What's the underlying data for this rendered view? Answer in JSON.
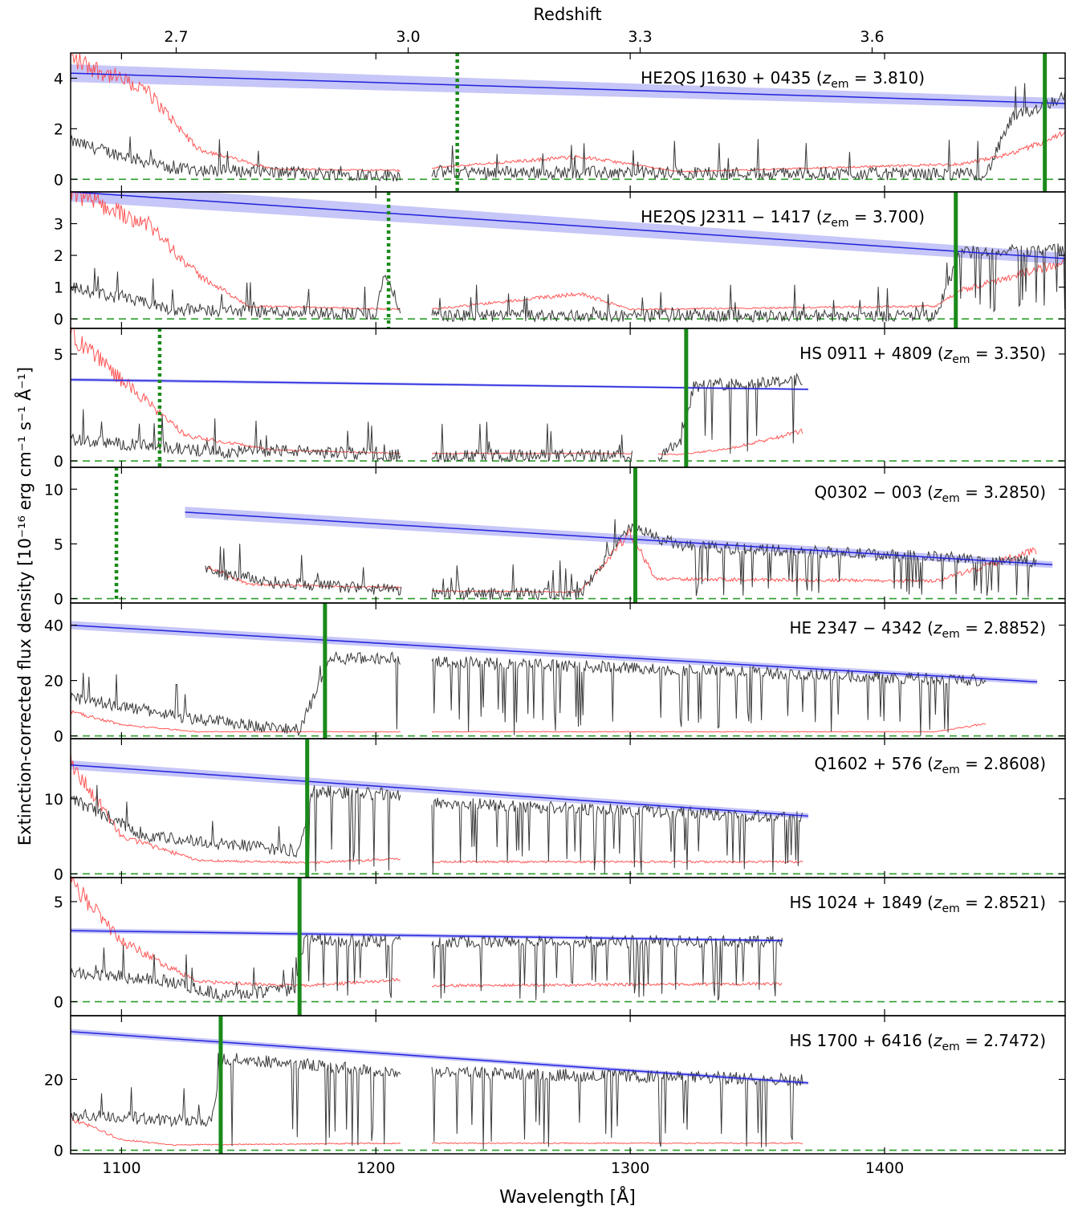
{
  "chart_data": {
    "type": "line",
    "xlabel": "Wavelength [Å]",
    "ylabel": "Extinction-corrected flux density [10⁻¹⁶ erg cm⁻¹ s⁻¹ Å⁻¹]",
    "top_xlabel": "Redshift",
    "xlim": [
      1080,
      1471
    ],
    "x_ticks": [
      1100,
      1200,
      1300,
      1400
    ],
    "x_tick_labels": [
      "1100",
      "1200",
      "1300",
      "1400"
    ],
    "top_ticks": [
      {
        "label": "2.7",
        "wavelength": 1121.5
      },
      {
        "label": "3.0",
        "wavelength": 1212.7
      },
      {
        "label": "3.3",
        "wavelength": 1303.9
      },
      {
        "label": "3.6",
        "wavelength": 1395.1
      }
    ],
    "series_colors": {
      "flux": "#3a3a3a",
      "error": "#ff4444",
      "continuum": "#2222dd",
      "continuum_band": "#b3b3f5",
      "marker": "#1a8a1a",
      "zero": "#2e9e2e"
    },
    "panels": [
      {
        "name": "HE2QS J1630 + 0435",
        "z_em": "3.810",
        "ylim": [
          -0.5,
          5.0
        ],
        "yticks": [
          0,
          2,
          4
        ],
        "lya_obs": 1463,
        "dotted_marker": 1232,
        "solid_marker": 1463,
        "continuum": {
          "x": [
            1080,
            1471
          ],
          "y": [
            4.2,
            3.0
          ],
          "band": 0.35
        },
        "flux_mean": [
          [
            1080,
            1.5
          ],
          [
            1120,
            0.4
          ],
          [
            1210,
            0.15
          ],
          [
            1222,
            0.3
          ],
          [
            1440,
            0.2
          ],
          [
            1450,
            2.4
          ],
          [
            1471,
            3.3
          ]
        ],
        "err_mean": [
          [
            1080,
            4.8
          ],
          [
            1110,
            3.5
          ],
          [
            1130,
            1.2
          ],
          [
            1160,
            0.4
          ],
          [
            1210,
            0.35
          ],
          [
            1222,
            0.45
          ],
          [
            1280,
            0.9
          ],
          [
            1320,
            0.3
          ],
          [
            1430,
            0.6
          ],
          [
            1450,
            1.0
          ],
          [
            1471,
            1.8
          ]
        ],
        "gaps": [
          [
            1210,
            1222
          ]
        ],
        "end": 1471
      },
      {
        "name": "HE2QS J2311 − 1417",
        "z_em": "3.700",
        "ylim": [
          -0.3,
          4.0
        ],
        "yticks": [
          0,
          1,
          2,
          3
        ],
        "lya_obs": 1428,
        "dotted_marker": 1205,
        "solid_marker": 1428,
        "continuum": {
          "x": [
            1080,
            1471
          ],
          "y": [
            4.0,
            1.9
          ],
          "band": 0.3
        },
        "flux_mean": [
          [
            1080,
            1.0
          ],
          [
            1120,
            0.3
          ],
          [
            1200,
            0.15
          ],
          [
            1203,
            1.4
          ],
          [
            1210,
            0.3
          ],
          [
            1222,
            0.1
          ],
          [
            1420,
            0.1
          ],
          [
            1430,
            2.1
          ],
          [
            1471,
            2.2
          ]
        ],
        "err_mean": [
          [
            1080,
            4.0
          ],
          [
            1110,
            3.0
          ],
          [
            1130,
            1.4
          ],
          [
            1150,
            0.4
          ],
          [
            1210,
            0.3
          ],
          [
            1222,
            0.3
          ],
          [
            1280,
            0.8
          ],
          [
            1300,
            0.3
          ],
          [
            1420,
            0.4
          ],
          [
            1430,
            0.9
          ],
          [
            1471,
            1.8
          ]
        ],
        "gaps": [
          [
            1210,
            1222
          ]
        ],
        "end": 1471
      },
      {
        "name": "HS 0911 + 4809",
        "z_em": "3.350",
        "ylim": [
          -0.3,
          6.2
        ],
        "yticks": [
          0,
          5
        ],
        "lya_obs": 1322,
        "dotted_marker": 1115,
        "solid_marker": 1322,
        "continuum": {
          "x": [
            1080,
            1370
          ],
          "y": [
            3.8,
            3.35
          ],
          "band": 0.08
        },
        "flux_mean": [
          [
            1080,
            1.0
          ],
          [
            1140,
            0.4
          ],
          [
            1160,
            0.5
          ],
          [
            1210,
            0.25
          ],
          [
            1222,
            0.25
          ],
          [
            1300,
            0.25
          ],
          [
            1310,
            0.1
          ],
          [
            1320,
            1.0
          ],
          [
            1325,
            3.5
          ],
          [
            1368,
            3.8
          ]
        ],
        "err_mean": [
          [
            1080,
            6.0
          ],
          [
            1100,
            3.8
          ],
          [
            1125,
            1.2
          ],
          [
            1160,
            0.5
          ],
          [
            1210,
            0.35
          ],
          [
            1222,
            0.35
          ],
          [
            1300,
            0.35
          ],
          [
            1320,
            0.3
          ],
          [
            1340,
            0.6
          ],
          [
            1368,
            1.4
          ]
        ],
        "gaps": [
          [
            1210,
            1222
          ],
          [
            1301,
            1311
          ]
        ],
        "end": 1368
      },
      {
        "name": "Q0302 − 003",
        "z_em": "3.2850",
        "ylim": [
          -0.4,
          12.0
        ],
        "yticks": [
          0,
          5,
          10
        ],
        "lya_obs": 1302,
        "dotted_marker": 1098,
        "solid_marker": 1302,
        "continuum": {
          "x": [
            1125,
            1466
          ],
          "y": [
            7.9,
            3.1
          ],
          "band": 0.5
        },
        "flux_mean": [
          [
            1133,
            2.5
          ],
          [
            1160,
            1.5
          ],
          [
            1210,
            0.7
          ],
          [
            1222,
            0.5
          ],
          [
            1280,
            0.4
          ],
          [
            1300,
            6.5
          ],
          [
            1320,
            4.8
          ],
          [
            1460,
            3.4
          ]
        ],
        "err_mean": [
          [
            1133,
            3.0
          ],
          [
            1150,
            1.3
          ],
          [
            1210,
            1.0
          ],
          [
            1222,
            0.7
          ],
          [
            1280,
            0.6
          ],
          [
            1300,
            6.0
          ],
          [
            1310,
            1.8
          ],
          [
            1420,
            1.6
          ],
          [
            1440,
            3.0
          ],
          [
            1460,
            4.5
          ]
        ],
        "gaps": [
          [
            1210,
            1222
          ]
        ],
        "start": 1133,
        "end": 1460
      },
      {
        "name": "HE 2347 − 4342",
        "z_em": "2.8852",
        "ylim": [
          -1.0,
          48.0
        ],
        "yticks": [
          0,
          20,
          40
        ],
        "lya_obs": 1180,
        "dotted_marker": null,
        "solid_marker": 1180,
        "continuum": {
          "x": [
            1080,
            1460
          ],
          "y": [
            40.0,
            19.5
          ],
          "band": 1.5
        },
        "flux_mean": [
          [
            1080,
            14.0
          ],
          [
            1130,
            6.0
          ],
          [
            1170,
            2.0
          ],
          [
            1182,
            28.0
          ],
          [
            1210,
            28.0
          ],
          [
            1222,
            27.0
          ],
          [
            1440,
            20.0
          ]
        ],
        "err_mean": [
          [
            1080,
            9.0
          ],
          [
            1100,
            4.0
          ],
          [
            1130,
            1.5
          ],
          [
            1210,
            1.5
          ],
          [
            1222,
            1.5
          ],
          [
            1420,
            1.5
          ],
          [
            1440,
            4.5
          ]
        ],
        "gaps": [
          [
            1210,
            1222
          ]
        ],
        "end": 1440
      },
      {
        "name": "Q1602 + 576",
        "z_em": "2.8608",
        "ylim": [
          -0.5,
          18.0
        ],
        "yticks": [
          0,
          10
        ],
        "lya_obs": 1173,
        "dotted_marker": null,
        "solid_marker": 1173,
        "continuum": {
          "x": [
            1080,
            1370
          ],
          "y": [
            14.5,
            7.7
          ],
          "band": 0.6
        },
        "flux_mean": [
          [
            1080,
            10.0
          ],
          [
            1110,
            5.0
          ],
          [
            1170,
            3.0
          ],
          [
            1175,
            11.0
          ],
          [
            1210,
            10.5
          ],
          [
            1222,
            9.5
          ],
          [
            1368,
            7.5
          ]
        ],
        "err_mean": [
          [
            1080,
            15.0
          ],
          [
            1100,
            5.0
          ],
          [
            1130,
            1.8
          ],
          [
            1170,
            1.5
          ],
          [
            1175,
            1.5
          ],
          [
            1210,
            2.0
          ],
          [
            1222,
            1.6
          ],
          [
            1368,
            1.6
          ]
        ],
        "gaps": [
          [
            1210,
            1222
          ]
        ],
        "end": 1368
      },
      {
        "name": "HS 1024 + 1849",
        "z_em": "2.8521",
        "ylim": [
          -0.7,
          6.2
        ],
        "yticks": [
          0,
          5
        ],
        "lya_obs": 1170,
        "dotted_marker": null,
        "solid_marker": 1170,
        "continuum": {
          "x": [
            1080,
            1360
          ],
          "y": [
            3.55,
            3.05
          ],
          "band": 0.12
        },
        "flux_mean": [
          [
            1080,
            1.5
          ],
          [
            1120,
            1.0
          ],
          [
            1140,
            0.3
          ],
          [
            1168,
            0.6
          ],
          [
            1172,
            3.1
          ],
          [
            1210,
            3.0
          ],
          [
            1222,
            3.0
          ],
          [
            1360,
            3.0
          ]
        ],
        "err_mean": [
          [
            1080,
            6.0
          ],
          [
            1100,
            3.0
          ],
          [
            1130,
            1.0
          ],
          [
            1168,
            0.8
          ],
          [
            1172,
            0.8
          ],
          [
            1210,
            1.1
          ],
          [
            1222,
            0.8
          ],
          [
            1360,
            0.9
          ]
        ],
        "gaps": [
          [
            1210,
            1222
          ]
        ],
        "end": 1360
      },
      {
        "name": "HS 1700 + 6416",
        "z_em": "2.7472",
        "ylim": [
          -1.0,
          38.0
        ],
        "yticks": [
          0,
          20
        ],
        "lya_obs": 1139,
        "dotted_marker": null,
        "solid_marker": 1139,
        "continuum": {
          "x": [
            1080,
            1370
          ],
          "y": [
            33.5,
            19.0
          ],
          "band": 0.8
        },
        "flux_mean": [
          [
            1080,
            10.0
          ],
          [
            1135,
            8.0
          ],
          [
            1140,
            26.0
          ],
          [
            1210,
            22.0
          ],
          [
            1222,
            22.0
          ],
          [
            1368,
            20.0
          ]
        ],
        "err_mean": [
          [
            1080,
            9.0
          ],
          [
            1100,
            3.0
          ],
          [
            1120,
            1.5
          ],
          [
            1210,
            2.0
          ],
          [
            1222,
            2.0
          ],
          [
            1368,
            2.0
          ]
        ],
        "gaps": [
          [
            1210,
            1222
          ]
        ],
        "end": 1368
      }
    ]
  }
}
